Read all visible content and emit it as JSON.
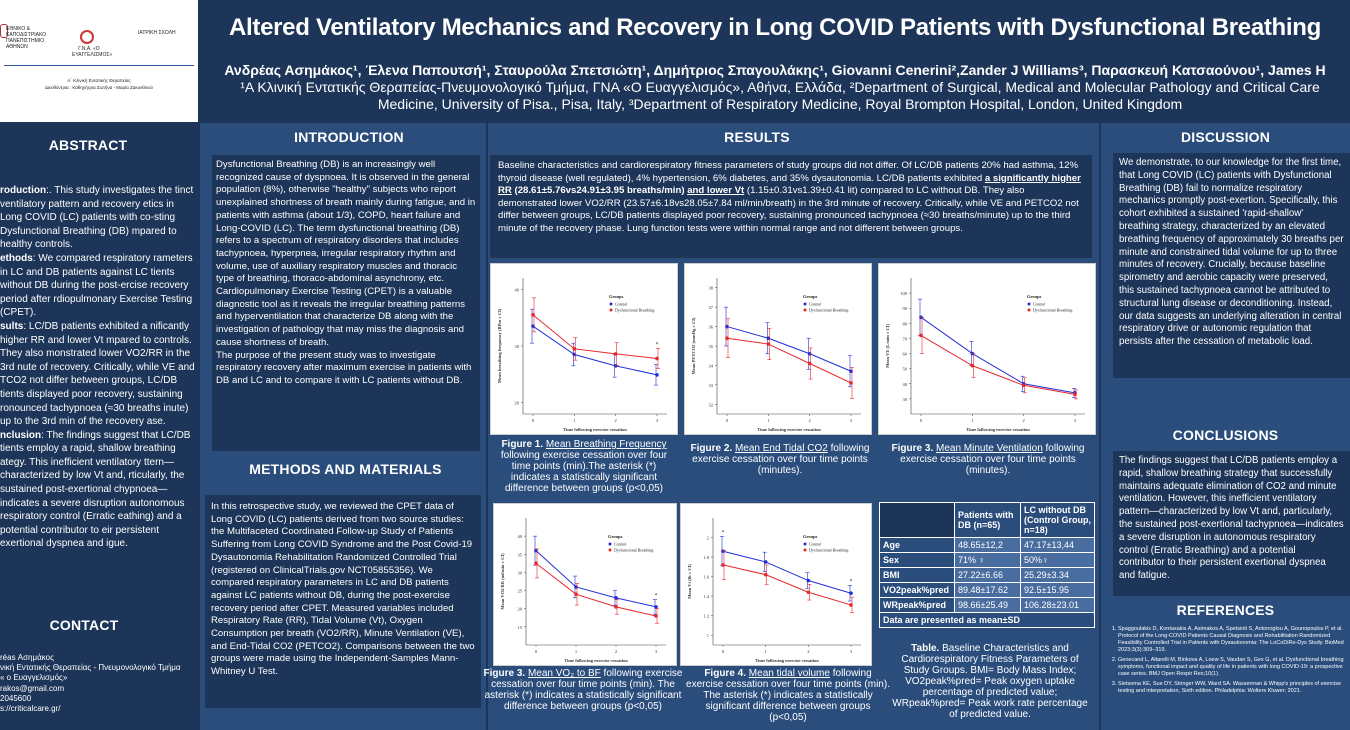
{
  "logos": {
    "university": "ΕΘΝΙΚΟ & ΚΑΠΟΔΙΣΤΡΙΑΚΟ ΠΑΝΕΠΙΣΤΗΜΙΟ ΑΘΗΝΩΝ",
    "hospital": "Γ.Ν.Α. «Ο ΕΥΑΓΓΕΛΙΣΜΟΣ»",
    "school": "ΙΑΤΡΙΚΗ ΣΧΟΛΗ",
    "clinic_line1": "Α΄ Κλινική Εντατικής Θεραπείας",
    "clinic_line2": "Διευθύντρια : Καθηγήτρια Σωτήνα - Μαρία Ζακυνθινού"
  },
  "header": {
    "title": "Altered Ventilatory Mechanics and Recovery in Long COVID  Patients with Dysfunctional Breathing",
    "authors": "Ανδρέας Ασημάκος¹, Έλενα Παπουτσή¹, Σταυρούλα Σπετσιώτη¹, Δημήτριος Σπαγουλάκης¹, Giovanni Cenerini²,Zander J Williams³, Παρασκευή Κατσαούνου¹, James H",
    "affiliation_line1": "¹Α Κλινική Εντατικής Θεραπείας-Πνευμονολογικό Τμήμα, ΓΝΑ «Ο Ευαγγελισμός», Αθήνα, Ελλάδα, ²Department of Surgical, Medical and Molecular Pathology and Critical Care",
    "affiliation_line2": "Medicine, University of Pisa., Pisa, Italy, ³Department of Respiratory Medicine, Royal Brompton Hospital, London, United Kingdom"
  },
  "abstract": {
    "heading": "ABSTRACT",
    "intro_label": "roduction",
    "intro": ":. This study investigates the tinct ventilatory pattern and recovery etics in Long COVID (LC) patients with co-sting Dysfunctional Breathing (DB) mpared to healthy controls.",
    "methods_label": "ethods",
    "methods": ": We compared respiratory rameters in LC and DB patients against LC tients without DB during the post-ercise recovery period after rdiopulmonary Exercise Testing (CPET).",
    "results_label": "sults",
    "results": ": LC/DB patients exhibited a nificantly higher RR and lower Vt mpared to controls. They also monstrated lower VO2/RR in the 3rd nute of recovery. Critically, while VE and TCO2 not differ between groups, LC/DB tients displayed poor recovery, sustaining ronounced tachypnoea (≈30 breaths inute) up to the 3rd min  of the recovery ase.",
    "conclusion_label": "nclusion",
    "conclusion": ": The findings suggest that LC/DB tients employ a rapid, shallow breathing ategy. This inefficient ventilatory ttern—characterized by low Vt and, rticularly, the sustained post-exertional chypnoea—indicates a severe disruption autonomous respiratory control (Erratic eathing) and a potential contributor to eir persistent exertional dyspnea and igue."
  },
  "contact": {
    "heading": "CONTACT",
    "line1": "réas Ασημάκος",
    "line2": "νική  Εντατικής Θεραπείας - Πνευμονολογικό Τμήμα",
    "line3": "« ο Ευαγγελισμός»",
    "line4": "rakos@gmail.com",
    "line5": "2045600",
    "line6": "s://criticalcare.gr/"
  },
  "introduction": {
    "heading": "INTRODUCTION",
    "text": "Dysfunctional Breathing (DB) is an increasingly well recognized cause of dyspnoea. It is observed in the general population (8%), otherwise \"healthy\" subjects who report unexplained shortness of breath mainly during fatigue, and in patients with asthma (about 1/3), COPD, heart failure and Long-COVID (LC). The term dysfunctional breathing (DB) refers to a spectrum of respiratory disorders that includes tachypnoea,  hyperpnea, irregular respiratory rhythm and volume, use of auxiliary respiratory muscles and thoracic type of breathing, thoraco-abdominal asynchrony, etc. Cardiopulmonary Exercise Testing (CPET) is a valuable diagnostic tool as it reveals the irregular breathing patterns and hyperventilation that characterize DB along with the investigation of pathology that may miss the diagnosis and cause shortness of breath.",
    "text2": "The purpose of the present study was to investigate respiratory recovery after maximum exercise in patients with DB and LC and to compare it with LC patients without DB."
  },
  "methods": {
    "heading": "METHODS AND MATERIALS",
    "text": "In this retrospective study, we reviewed the CPET data of Long COVID (LC) patients derived from two source studies: the Multifaceted Coordinated Follow-up Study of Patients Suffering from Long COVID Syndrome and the Post Covid-19 Dysautonomia Rehabilitation Randomized Controlled Trial (registered on ClinicalTrials.gov NCT05855356). We compared respiratory parameters in LC and DB patients against LC patients without DB, during the post-exercise recovery period after CPET. Measured variables included Respiratory Rate (RR), Tidal Volume (Vt), Oxygen Consumption per breath (VO2/RR), Minute Ventilation (VE), and End-Tidal CO2 (PETCO2). Comparisons between the two groups were made using the Independent-Samples Mann-Whitney U Test."
  },
  "results": {
    "heading": "RESULTS",
    "p1": "Baseline characteristics and cardiorespiratory fitness parameters of study groups did not differ. Of LC/DB patients 20% had asthma, 12% thyroid disease (well regulated), 4% hypertension, 6% diabetes, and 35% dysautonomia. LC/DB patients exhibited ",
    "rr_label": "a significantly higher RR",
    "rr_values": " (28.61±5.76vs24.91±3.95 breaths/min) ",
    "vt_label": "and lower Vt",
    "p2": " (1.15±0.31vs1.39±0.41 lit) compared to LC without DB. They also demonstrated lower VO2/RR (23.57±6.18vs28.05±7.84 ml/min/breath) in the 3rd minute of recovery. Critically, while VE and PETCO2 not differ between groups, LC/DB patients displayed poor recovery, sustaining pronounced tachypnoea (≈30 breaths/minute) up to the third minute of the recovery phase.  Lung function tests were within normal range and not different between groups."
  },
  "figures": {
    "fig1": {
      "num": "Figure 1.",
      "title": "Mean Breathing Frequency",
      "rest": " following exercise cessation over four time points (min).The asterisk (*) indicates a statistically significant difference between groups (p<0,05)"
    },
    "fig2": {
      "num": "Figure 2.",
      "title": "Mean End Tidal CO2",
      "rest": " following exercise cessation over four time points (minutes)."
    },
    "fig3a": {
      "num": "Figure 3.",
      "title": "Mean Minute Ventilation",
      "rest": " following exercise cessation over four time points (minutes)."
    },
    "fig3b": {
      "num": "Figure 3.",
      "title": "Mean VO₂ to BF",
      "rest": " following exercise cessation over four time points (min). The asterisk (*) indicates a statistically significant difference between groups (p<0,05)"
    },
    "fig4": {
      "num": "Figure 4.",
      "title": "Mean tidal volume",
      "rest": " following exercise cessation over four time points (min). The asterisk (*) indicates a statistically significant difference between groups (p<0,05)"
    }
  },
  "legend": {
    "title": "Groups",
    "control": "Control",
    "db": "Dysfunctional Breathing"
  },
  "xaxis_label": "Time following exercise cessation",
  "chart_data": [
    {
      "type": "line",
      "title": "Mean Breathing Frequency",
      "ylabel": "Mean breathing frequency (BPm ± CI)",
      "x": [
        0,
        1,
        2,
        3
      ],
      "ylim": [
        18,
        42
      ],
      "yticks": [
        20,
        30,
        40
      ],
      "series": [
        {
          "name": "Control",
          "values": [
            33.5,
            28.5,
            26.5,
            24.9
          ],
          "err": [
            3,
            2,
            2,
            1.8
          ]
        },
        {
          "name": "Dysfunctional Breathing",
          "values": [
            35.5,
            29.5,
            28.6,
            27.8
          ],
          "err": [
            3,
            2,
            2,
            1.8
          ]
        }
      ],
      "star": [
        3
      ]
    },
    {
      "type": "line",
      "title": "Mean End Tidal CO2",
      "ylabel": "Mean PETCO2 (mmHg ± CI)",
      "x": [
        0,
        1,
        2,
        3
      ],
      "ylim": [
        31.5,
        38.5
      ],
      "yticks": [
        32,
        33,
        34,
        35,
        36,
        37,
        38
      ],
      "series": [
        {
          "name": "Control",
          "values": [
            36.0,
            35.4,
            34.6,
            33.7
          ],
          "err": [
            1,
            0.8,
            0.8,
            0.8
          ]
        },
        {
          "name": "Dysfunctional Breathing",
          "values": [
            35.4,
            35.1,
            34.1,
            33.1
          ],
          "err": [
            1,
            0.8,
            0.8,
            0.8
          ]
        }
      ],
      "star": []
    },
    {
      "type": "line",
      "title": "Mean Minute Ventilation",
      "ylabel": "Mean VE (L/min ± CI)",
      "x": [
        0,
        1,
        2,
        3
      ],
      "ylim": [
        20,
        110
      ],
      "yticks": [
        30,
        40,
        50,
        60,
        70,
        80,
        90,
        100
      ],
      "series": [
        {
          "name": "Control",
          "values": [
            84,
            60,
            40,
            34
          ],
          "err": [
            12,
            8,
            5,
            3
          ]
        },
        {
          "name": "Dysfunctional Breathing",
          "values": [
            72,
            52,
            39,
            33
          ],
          "err": [
            12,
            8,
            5,
            3
          ]
        }
      ],
      "star": []
    },
    {
      "type": "line",
      "title": "Mean VO₂ to BF",
      "ylabel": "Mean VO2/RR (ml/min ± CI)",
      "x": [
        0,
        1,
        2,
        3
      ],
      "ylim": [
        10,
        45
      ],
      "yticks": [
        15,
        20,
        25,
        30,
        35,
        40
      ],
      "series": [
        {
          "name": "Control",
          "values": [
            36,
            26,
            23,
            20.5
          ],
          "err": [
            4,
            3,
            2,
            2
          ]
        },
        {
          "name": "Dysfunctional Breathing",
          "values": [
            32.5,
            24,
            20.5,
            18
          ],
          "err": [
            4,
            3,
            2,
            2
          ]
        }
      ],
      "star": [
        3
      ]
    },
    {
      "type": "line",
      "title": "Mean tidal volume",
      "ylabel": "Mean Vt (lit ± CI)",
      "x": [
        0,
        1,
        2,
        3
      ],
      "ylim": [
        0.9,
        2.2
      ],
      "yticks": [
        1.0,
        1.2,
        1.4,
        1.6,
        1.8,
        2.0
      ],
      "series": [
        {
          "name": "Control",
          "values": [
            1.86,
            1.75,
            1.56,
            1.43
          ],
          "err": [
            0.15,
            0.1,
            0.08,
            0.08
          ]
        },
        {
          "name": "Dysfunctional Breathing",
          "values": [
            1.72,
            1.62,
            1.44,
            1.31
          ],
          "err": [
            0.15,
            0.1,
            0.08,
            0.08
          ]
        }
      ],
      "star": [
        0,
        3
      ]
    }
  ],
  "table": {
    "headers": [
      "",
      "Patients with DB (n=65)",
      "LC without DB (Control Group, n=18)"
    ],
    "rows": [
      [
        "Age",
        "48.65±12,2",
        "47.17±13,44"
      ],
      [
        "Sex",
        "71% ♀",
        "50%♀"
      ],
      [
        "BMI",
        "27.22±6.66",
        "25.29±3.34"
      ],
      [
        "VO2peak%pred",
        "89.48±17.62",
        "92.5±15.95"
      ],
      [
        "WRpeak%pred",
        "98.66±25.49",
        "106.28±23.01"
      ]
    ],
    "note": "Data are presented as mean±SD",
    "caption_bold": "Table.",
    "caption": " Baseline Characteristics and Cardiorespiratory Fitness Parameters of Study Groups. BMI= Body Mass Index; VO2peak%pred= Peak oxygen uptake percentage of predicted value; WRpeak%pred= Peak work rate percentage of predicted value."
  },
  "discussion": {
    "heading": "DISCUSSION",
    "text": "We demonstrate, to our knowledge for the first time, that Long COVID (LC) patients with Dysfunctional Breathing (DB) fail to normalize respiratory mechanics promptly post-exertion. Specifically, this cohort exhibited a sustained 'rapid-shallow' breathing strategy, characterized by an elevated breathing frequency of approximately 30 breaths per minute and constrained tidal volume for up to three minutes of recovery. Crucially, because baseline spirometry and aerobic capacity were preserved, this sustained tachypnoea cannot be attributed to structural lung disease or deconditioning. Instead, our data suggests an underlying alteration in central respiratory drive or autonomic regulation that persists after the cessation of metabolic load."
  },
  "conclusions": {
    "heading": "CONCLUSIONS",
    "text": "The findings suggest that LC/DB patients employ a rapid, shallow breathing strategy that successfully maintains adequate elimination of CO2 and minute ventilation. However, this inefficient ventilatory pattern—characterized by low Vt and, particularly, the sustained post-exertional tachypnoea—indicates a severe disruption in autonomous respiratory control (Erratic Breathing) and a potential contributor to their persistent exertional dyspnea and fatigue."
  },
  "references": {
    "heading": "REFERENCES",
    "items": [
      "Spaggoulakis D, Kontaxakis A, Asimakos A, Spetsioti S, Antonoglou A, Gounopoulos P, et al. Protocol of the Long-COVID Patients Causal Diagnosis and Rehabilitation Randomized Feasibility Controlled Trial in Patients with Dysautonomia: The LoCoDiRe-Dys Study. BioMed 2023;3(3):309–319.",
      "Genecand L, Altarelli M, Binkova A, Loew S, Vaudan S, Gex G, et al. Dysfunctional breathing symptoms, functional impact and quality of life in patients with long COVID-19: a prospective case series. BMJ Open Respir Res;10(1).",
      "Sietsema KE, Sue DY, Stringer WW, Ward SA. Wasserman & Whipp's principles of exercise testing and interpretation, Sixth edition. Philadelphia: Wolters Kluwer; 2021."
    ]
  },
  "colors": {
    "control": "#1f2fd6",
    "db": "#e8262b",
    "bg_dark": "#1d3558",
    "bg_mid": "#2a4d7c"
  }
}
